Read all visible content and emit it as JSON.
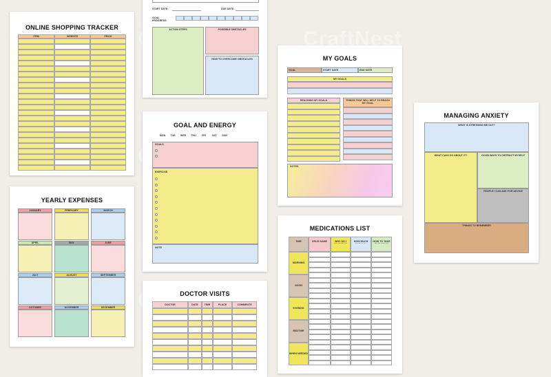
{
  "watermark": "CraftNest",
  "shopping": {
    "title": "ONLINE SHOPPING TRACKER",
    "cols": [
      "ITEM",
      "WEBSITE",
      "PRICE"
    ]
  },
  "goalsheet": {
    "start": "START DATE:",
    "due": "DUE DATE:",
    "progress": "GOAL PROGRESS:",
    "actions": "ACTION STEPS",
    "obstacles": "POSSIBLE OBSTACLES",
    "overcome": "HOW TO OVERCOME OBSTACLES"
  },
  "mygoals": {
    "title": "MY GOALS",
    "goal": "GOAL",
    "start": "START DATE",
    "end": "END DATE",
    "my_goals": "MY GOALS",
    "reaching": "REACHING MY GOALS",
    "things": "THINGS THAT WILL HELP TO REACH MY GOAL",
    "notes": "NOTES"
  },
  "anxiety": {
    "title": "MANAGING ANXIETY",
    "stress": "WHAT IS STRESSING ME OUT?",
    "do": "WHAT CAN I DO ABOUT IT?",
    "distract": "GOOD WAYS TO DISTRACT MYSELF",
    "people": "PEOPLE I CAN ASK FOR ADVICE",
    "remember": "THINGS TO REMEMBER"
  },
  "energy": {
    "title": "GOAL AND ENERGY",
    "days": [
      "MON",
      "TUE",
      "WED",
      "THU",
      "FRI",
      "SAT",
      "SUN"
    ],
    "goals": "GOALS",
    "exercise": "EXERCISE",
    "note": "NOTE"
  },
  "expenses": {
    "title": "YEARLY EXPENSES",
    "months": [
      "JANUARY",
      "FEBRUARY",
      "MARCH",
      "APRIL",
      "MAY",
      "JUNE",
      "JULY",
      "AUGUST",
      "SEPTEMBER",
      "OCTOBER",
      "NOVEMBER",
      "DECEMBER"
    ]
  },
  "doctor": {
    "title": "DOCTOR VISITS",
    "cols": [
      "DOCTOR",
      "DATE",
      "TIME",
      "PLACE",
      "COMMENTS"
    ]
  },
  "meds": {
    "title": "MEDICATIONS LIST",
    "cols": [
      "TIME",
      "DRUG NAME",
      "WHY DO I TAKE THIS DRUG?",
      "HOW MUCH SHOULD I TAKE?",
      "HOW TO TAKE THIS DRUG"
    ],
    "times": [
      "MORNING",
      "NOON",
      "EVENING",
      "BEDTIME",
      "WHEN NEEDED"
    ]
  },
  "colors": {
    "background": "#f1ede8",
    "yellow": "#f4ec8a",
    "pink": "#f6cfd1",
    "blue": "#d9e8f8",
    "green": "#dcedc4",
    "orange": "#f7c894"
  }
}
